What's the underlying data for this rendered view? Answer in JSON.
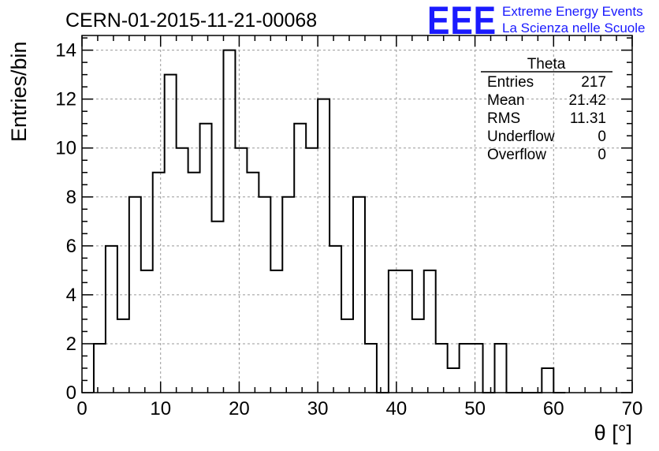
{
  "chart_data": {
    "type": "histogram",
    "title": "CERN-01-2015-11-21-00068",
    "xlabel": "θ [°]",
    "ylabel": "Entries/bin",
    "xlim": [
      0,
      70
    ],
    "ylim": [
      0,
      14.6
    ],
    "bin_width": 1.5,
    "x_ticks": [
      0,
      10,
      20,
      30,
      40,
      50,
      60,
      70
    ],
    "y_ticks": [
      0,
      2,
      4,
      6,
      8,
      10,
      12,
      14
    ],
    "grid": true,
    "bins": [
      {
        "x_low": 1.5,
        "count": 2
      },
      {
        "x_low": 3.0,
        "count": 6
      },
      {
        "x_low": 4.5,
        "count": 3
      },
      {
        "x_low": 6.0,
        "count": 8
      },
      {
        "x_low": 7.5,
        "count": 5
      },
      {
        "x_low": 9.0,
        "count": 9
      },
      {
        "x_low": 10.5,
        "count": 13
      },
      {
        "x_low": 12.0,
        "count": 10
      },
      {
        "x_low": 13.5,
        "count": 9
      },
      {
        "x_low": 15.0,
        "count": 11
      },
      {
        "x_low": 16.5,
        "count": 7
      },
      {
        "x_low": 18.0,
        "count": 14
      },
      {
        "x_low": 19.5,
        "count": 10
      },
      {
        "x_low": 21.0,
        "count": 9
      },
      {
        "x_low": 22.5,
        "count": 8
      },
      {
        "x_low": 24.0,
        "count": 5
      },
      {
        "x_low": 25.5,
        "count": 8
      },
      {
        "x_low": 27.0,
        "count": 11
      },
      {
        "x_low": 28.5,
        "count": 10
      },
      {
        "x_low": 30.0,
        "count": 12
      },
      {
        "x_low": 31.5,
        "count": 6
      },
      {
        "x_low": 33.0,
        "count": 3
      },
      {
        "x_low": 34.5,
        "count": 8
      },
      {
        "x_low": 36.0,
        "count": 2
      },
      {
        "x_low": 37.5,
        "count": 0
      },
      {
        "x_low": 39.0,
        "count": 5
      },
      {
        "x_low": 40.5,
        "count": 5
      },
      {
        "x_low": 42.0,
        "count": 3
      },
      {
        "x_low": 43.5,
        "count": 5
      },
      {
        "x_low": 45.0,
        "count": 2
      },
      {
        "x_low": 46.5,
        "count": 1
      },
      {
        "x_low": 48.0,
        "count": 2
      },
      {
        "x_low": 49.5,
        "count": 2
      },
      {
        "x_low": 51.0,
        "count": 0
      },
      {
        "x_low": 52.5,
        "count": 2
      },
      {
        "x_low": 54.0,
        "count": 0
      },
      {
        "x_low": 55.5,
        "count": 0
      },
      {
        "x_low": 57.0,
        "count": 0
      },
      {
        "x_low": 58.5,
        "count": 1
      },
      {
        "x_low": 60.0,
        "count": 0
      }
    ],
    "stats_box": {
      "name": "Theta",
      "rows": [
        {
          "label": "Entries",
          "value": "217"
        },
        {
          "label": "Mean",
          "value": "21.42"
        },
        {
          "label": "RMS",
          "value": "11.31"
        },
        {
          "label": "Underflow",
          "value": "0"
        },
        {
          "label": "Overflow",
          "value": "0"
        }
      ]
    }
  },
  "logo": {
    "mark": "EEE",
    "line1": "Extreme Energy Events",
    "line2": "La Scienza nelle Scuole"
  },
  "colors": {
    "logo": "#1a1aff",
    "line": "#000000",
    "grid": "#999999"
  }
}
